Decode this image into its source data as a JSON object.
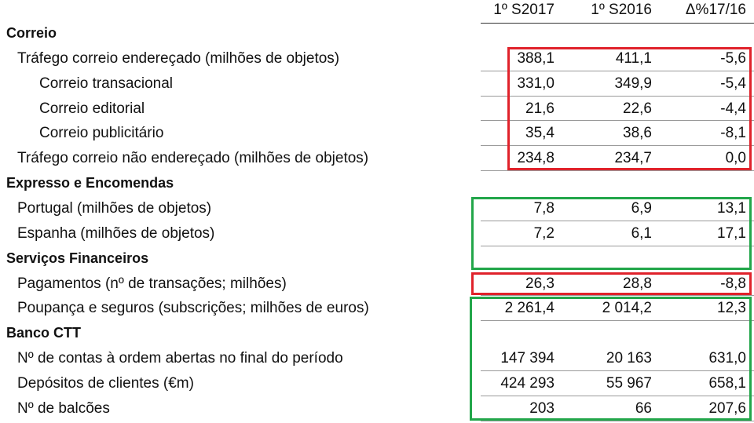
{
  "columns": [
    "1º S2017",
    "1º S2016",
    "Δ%17/16"
  ],
  "rows": [
    {
      "type": "section",
      "label": "Correio"
    },
    {
      "type": "item",
      "label": "Tráfego correio endereçado (milhões de objetos)",
      "v": [
        "388,1",
        "411,1",
        "-5,6"
      ]
    },
    {
      "type": "sub",
      "label": "Correio transacional",
      "v": [
        "331,0",
        "349,9",
        "-5,4"
      ]
    },
    {
      "type": "sub",
      "label": "Correio editorial",
      "v": [
        "21,6",
        "22,6",
        "-4,4"
      ]
    },
    {
      "type": "sub",
      "label": "Correio publicitário",
      "v": [
        "35,4",
        "38,6",
        "-8,1"
      ]
    },
    {
      "type": "item",
      "label": "Tráfego correio não endereçado (milhões de objetos)",
      "v": [
        "234,8",
        "234,7",
        "0,0"
      ]
    },
    {
      "type": "section",
      "label": "Expresso e Encomendas"
    },
    {
      "type": "item",
      "label": "Portugal (milhões de objetos)",
      "v": [
        "7,8",
        "6,9",
        "13,1"
      ]
    },
    {
      "type": "item",
      "label": "Espanha (milhões de objetos)",
      "v": [
        "7,2",
        "6,1",
        "17,1"
      ]
    },
    {
      "type": "section",
      "label": "Serviços Financeiros"
    },
    {
      "type": "item",
      "label": "Pagamentos (nº de transações; milhões)",
      "v": [
        "26,3",
        "28,8",
        "-8,8"
      ]
    },
    {
      "type": "item",
      "label": "Poupança e seguros (subscrições; milhões de euros)",
      "v": [
        "2 261,4",
        "2 014,2",
        "12,3"
      ]
    },
    {
      "type": "section",
      "label": "Banco CTT"
    },
    {
      "type": "item",
      "label": "Nº de contas à ordem abertas no final do período",
      "v": [
        "147 394",
        "20 163",
        "631,0"
      ]
    },
    {
      "type": "item",
      "label": "Depósitos de clientes (€m)",
      "v": [
        "424 293",
        "55 967",
        "658,1"
      ]
    },
    {
      "type": "item",
      "label": "Nº de balcões",
      "v": [
        "203",
        "66",
        "207,6"
      ]
    }
  ],
  "highlights": [
    {
      "color": "#e0222b",
      "rows": [
        1,
        5
      ]
    },
    {
      "color": "#22a64a",
      "rows": [
        7,
        9
      ]
    },
    {
      "color": "#e0222b",
      "rows": [
        10,
        10
      ]
    },
    {
      "color": "#22a64a",
      "rows": [
        11,
        15
      ]
    }
  ]
}
